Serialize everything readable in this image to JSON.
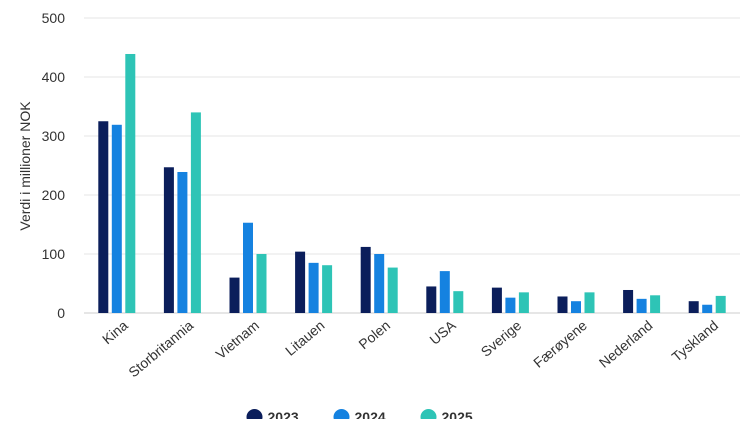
{
  "chart_data": {
    "type": "bar",
    "title": "",
    "xlabel": "",
    "ylabel": "Verdi i millioner NOK",
    "ylim": [
      0,
      500
    ],
    "yticks": [
      "0",
      "100",
      "200",
      "300",
      "400",
      "500"
    ],
    "grid": true,
    "legend_position": "bottom-center",
    "categories": [
      "Kina",
      "Storbritannia",
      "Vietnam",
      "Litauen",
      "Polen",
      "USA",
      "Sverige",
      "Færøyene",
      "Nederland",
      "Tyskland"
    ],
    "series": [
      {
        "name": "2023",
        "color": "#0b1e5b",
        "values": [
          325,
          247,
          60,
          104,
          112,
          45,
          43,
          28,
          39,
          20
        ]
      },
      {
        "name": "2024",
        "color": "#1582e0",
        "values": [
          319,
          239,
          153,
          85,
          100,
          71,
          26,
          20,
          24,
          14
        ]
      },
      {
        "name": "2025",
        "color": "#2ec4b6",
        "values": [
          439,
          340,
          100,
          81,
          77,
          37,
          35,
          35,
          30,
          29
        ]
      }
    ]
  }
}
